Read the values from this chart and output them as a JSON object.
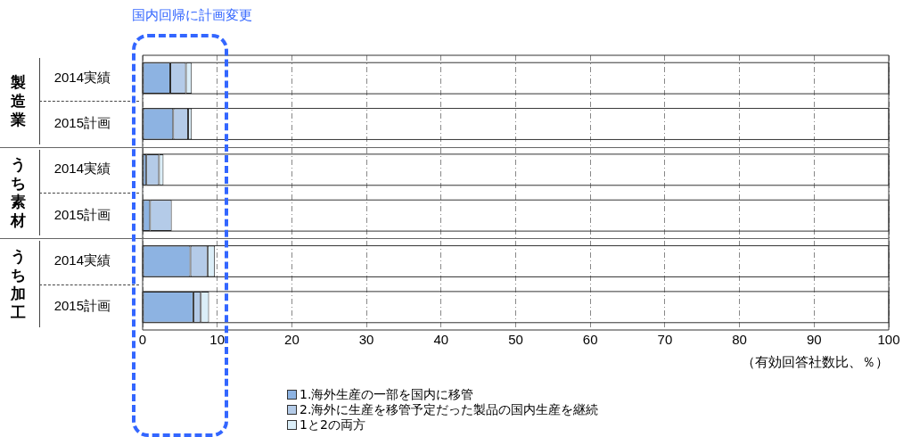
{
  "chart_data": {
    "type": "bar",
    "orientation": "horizontal",
    "stacked": true,
    "categories": [
      "2014実績",
      "2015計画",
      "2014実績",
      "2015計画",
      "2014実績",
      "2015計画"
    ],
    "series": [
      {
        "name": "1.海外生産の一部を国内に移管",
        "color": "#8db3e2",
        "values": [
          3.7,
          4.1,
          0.5,
          1.0,
          6.4,
          6.8
        ]
      },
      {
        "name": "2.海外に生産を移管予定だった製品の国内生産を継続",
        "color": "#b4cbe8",
        "values": [
          2.1,
          2.0,
          1.7,
          2.9,
          2.3,
          1.0
        ]
      },
      {
        "name": "1と2の両方",
        "color": "#dbeef8",
        "values": [
          0.8,
          0.5,
          0.6,
          0,
          1.0,
          1.1
        ]
      }
    ],
    "xlim": [
      0,
      100
    ],
    "xticks": [
      0,
      10,
      20,
      30,
      40,
      50,
      60,
      70,
      80,
      90,
      100
    ],
    "xlabel": "（有効回答社数比、％）",
    "annotations": [
      "国内回帰に計画変更",
      "製造業",
      "うち素材",
      "うち加工"
    ],
    "grid": "x",
    "legend": "bottom"
  }
}
